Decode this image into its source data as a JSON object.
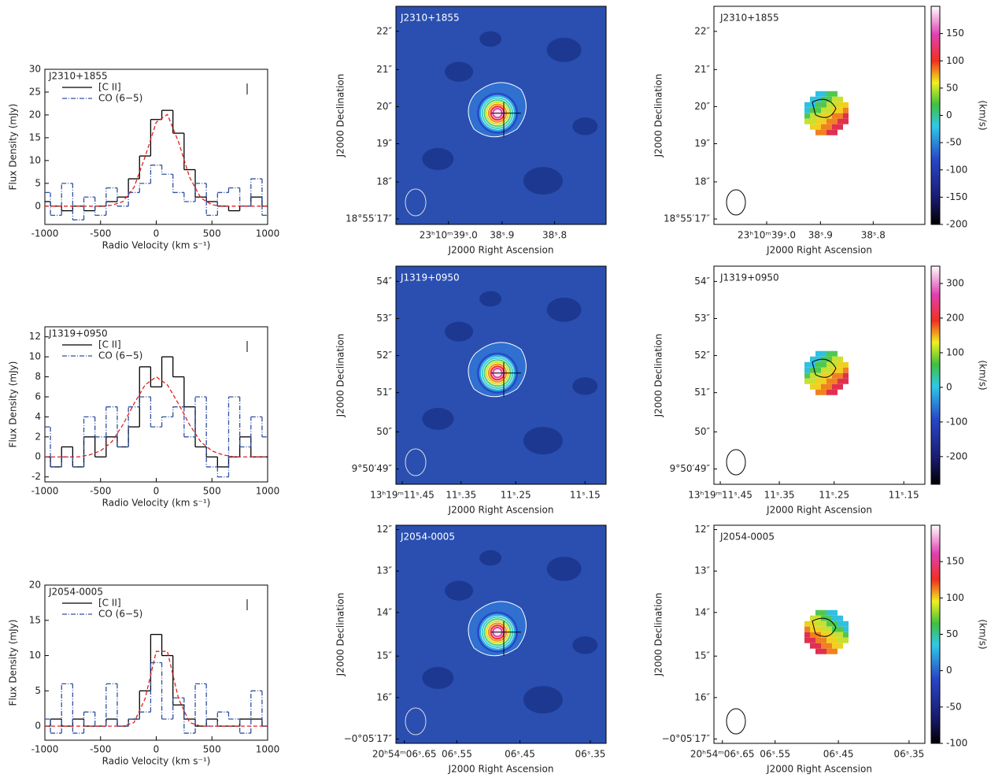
{
  "chart_data": [
    {
      "type": "line",
      "title": "J2310+1855",
      "x_label": "Radio Velocity (km s⁻¹)",
      "y_label": "Flux Density (mJy)",
      "x": [
        -1000,
        -900,
        -800,
        -700,
        -600,
        -500,
        -400,
        -300,
        -200,
        -100,
        0,
        100,
        200,
        300,
        400,
        500,
        600,
        700,
        800,
        900,
        1000
      ],
      "xlim": [
        -1000,
        1000
      ],
      "xticks": [
        -1000,
        -500,
        0,
        500,
        1000
      ],
      "ylim": [
        -4,
        30
      ],
      "yticks": [
        0,
        5,
        10,
        15,
        20,
        25,
        30
      ],
      "series": [
        {
          "name": "[C II]",
          "color": "#000000",
          "style": "step",
          "values": [
            1,
            0,
            -1,
            0,
            -1,
            0,
            1,
            2,
            6,
            11,
            19,
            21,
            16,
            8,
            2,
            1,
            0,
            -1,
            0,
            2,
            0
          ]
        },
        {
          "name": "CO (6−5)",
          "color": "#3050a0",
          "style": "step-dashdot",
          "values": [
            3,
            -2,
            5,
            -3,
            2,
            -2,
            4,
            0,
            3,
            5,
            9,
            7,
            3,
            1,
            5,
            -2,
            3,
            4,
            0,
            6,
            -2
          ]
        },
        {
          "color": "#e02020",
          "style": "dashed",
          "values": [
            0,
            0,
            0,
            0,
            0,
            0,
            0.2,
            1,
            4.1,
            10.8,
            18.4,
            20.1,
            14.1,
            6.3,
            1.8,
            0.3,
            0,
            0,
            0,
            0,
            0
          ]
        }
      ]
    },
    {
      "type": "line",
      "title": "J1319+0950",
      "x_label": "Radio Velocity (km s⁻¹)",
      "y_label": "Flux Density (mJy)",
      "x": [
        -1000,
        -900,
        -800,
        -700,
        -600,
        -500,
        -400,
        -300,
        -200,
        -100,
        0,
        100,
        200,
        300,
        400,
        500,
        600,
        700,
        800,
        900,
        1000
      ],
      "xlim": [
        -1000,
        1000
      ],
      "xticks": [
        -1000,
        -500,
        0,
        500,
        1000
      ],
      "ylim": [
        -2.5,
        13
      ],
      "yticks": [
        -2,
        0,
        2,
        4,
        6,
        8,
        10,
        12
      ],
      "series": [
        {
          "name": "[C II]",
          "color": "#000000",
          "style": "step",
          "values": [
            0,
            -1,
            1,
            -1,
            2,
            0,
            2,
            1,
            3,
            9,
            7,
            10,
            8,
            5,
            1,
            0,
            -1,
            0,
            2,
            0,
            0
          ]
        },
        {
          "name": "CO (6−5)",
          "color": "#3050a0",
          "style": "step-dashdot",
          "values": [
            3,
            -1,
            0,
            -1,
            4,
            2,
            5,
            1,
            5,
            6,
            3,
            4,
            5,
            2,
            6,
            -1,
            -2,
            6,
            1,
            4,
            2
          ]
        },
        {
          "color": "#e02020",
          "style": "dashed",
          "values": [
            0,
            0,
            0,
            0,
            0.2,
            0.6,
            1.5,
            3.2,
            5.3,
            7.2,
            8,
            7.2,
            5.3,
            3.2,
            1.5,
            0.6,
            0.2,
            0,
            0,
            0,
            0
          ]
        }
      ]
    },
    {
      "type": "line",
      "title": "J2054-0005",
      "x_label": "Radio Velocity (km s⁻¹)",
      "y_label": "Flux Density (mJy)",
      "x": [
        -1000,
        -900,
        -800,
        -700,
        -600,
        -500,
        -400,
        -300,
        -200,
        -100,
        0,
        100,
        200,
        300,
        400,
        500,
        600,
        700,
        800,
        900,
        1000
      ],
      "xlim": [
        -1000,
        1000
      ],
      "xticks": [
        -1000,
        -500,
        0,
        500,
        1000
      ],
      "ylim": [
        -2,
        20
      ],
      "yticks": [
        0,
        5,
        10,
        15,
        20
      ],
      "series": [
        {
          "name": "[C II]",
          "color": "#000000",
          "style": "step",
          "values": [
            0,
            1,
            0,
            1,
            0,
            0,
            1,
            0,
            1,
            5,
            13,
            10,
            3,
            1,
            0,
            1,
            0,
            0,
            1,
            1,
            0
          ]
        },
        {
          "name": "CO (6−5)",
          "color": "#3050a0",
          "style": "step-dashdot",
          "values": [
            1,
            -1,
            6,
            -1,
            2,
            0,
            6,
            0,
            1,
            2,
            9,
            1,
            4,
            -1,
            6,
            0,
            2,
            1,
            -1,
            5,
            0
          ]
        },
        {
          "color": "#e02020",
          "style": "dashed",
          "values": [
            0,
            0,
            0,
            0,
            0,
            0,
            0,
            0,
            0.5,
            3.9,
            10.6,
            10.6,
            3.9,
            0.5,
            0,
            0,
            0,
            0,
            0,
            0,
            0
          ]
        }
      ]
    }
  ],
  "maps": [
    {
      "source": "J2310+1855",
      "y_label": "J2000 Declination",
      "x_label": "J2000 Right Ascension",
      "yticks": [
        "22″",
        "21″",
        "20″",
        "19″",
        "18″",
        "18°55′17″"
      ],
      "xticks": [
        "23ʰ10ᵐ39ˢ.0",
        "38ˢ.9",
        "38ˢ.8"
      ]
    },
    {
      "source": "J1319+0950",
      "y_label": "J2000 Declination",
      "x_label": "J2000 Right Ascension",
      "yticks": [
        "54″",
        "53″",
        "52″",
        "51″",
        "50″",
        "9°50′49″"
      ],
      "xticks": [
        "13ʰ19ᵐ11ˢ.45",
        "11ˢ.35",
        "11ˢ.25",
        "11ˢ.15"
      ]
    },
    {
      "source": "J2054-0005",
      "y_label": "J2000 Declination",
      "x_label": "J2000 Right Ascension",
      "yticks": [
        "12″",
        "13″",
        "14″",
        "15″",
        "16″",
        "−0°05′17″"
      ],
      "xticks": [
        "20ʰ54ᵐ06ˢ.65",
        "06ˢ.55",
        "06ˢ.45",
        "06ˢ.35"
      ]
    }
  ],
  "velocity_maps": [
    {
      "source": "J2310+1855",
      "y_label": "J2000 Declination",
      "x_label": "J2000 Right Ascension",
      "yticks": [
        "22″",
        "21″",
        "20″",
        "19″",
        "18″",
        "18°55′17″"
      ],
      "xticks": [
        "23ʰ10ᵐ39ˢ.0",
        "38ˢ.9",
        "38ˢ.8"
      ],
      "colorbar": {
        "label": "(km/s)",
        "clim": [
          -200,
          200
        ],
        "ticks": [
          150,
          100,
          50,
          0,
          -50,
          -100,
          -150,
          -200
        ]
      }
    },
    {
      "source": "J1319+0950",
      "y_label": "J2000 Declination",
      "x_label": "J2000 Right Ascension",
      "yticks": [
        "54″",
        "53″",
        "52″",
        "51″",
        "50″",
        "9°50′49″"
      ],
      "xticks": [
        "13ʰ19ᵐ11ˢ.45",
        "11ˢ.35",
        "11ˢ.25",
        "11ˢ.15"
      ],
      "colorbar": {
        "label": "(km/s)",
        "clim": [
          -280,
          350
        ],
        "ticks": [
          300,
          200,
          100,
          0,
          -100,
          -200
        ]
      }
    },
    {
      "source": "J2054-0005",
      "y_label": "J2000 Declination",
      "x_label": "J2000 Right Ascension",
      "yticks": [
        "12″",
        "13″",
        "14″",
        "15″",
        "16″",
        "−0°05′17″"
      ],
      "xticks": [
        "20ʰ54ᵐ06ˢ.65",
        "06ˢ.55",
        "06ˢ.45",
        "06ˢ.35"
      ],
      "colorbar": {
        "label": "(km/s)",
        "clim": [
          -100,
          200
        ],
        "ticks": [
          150,
          100,
          50,
          0,
          -50,
          -100
        ]
      }
    }
  ]
}
